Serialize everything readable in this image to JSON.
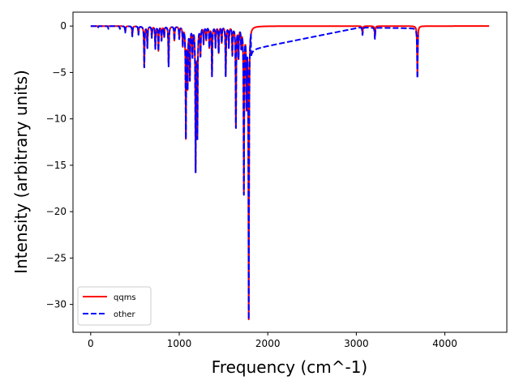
{
  "chart_data": {
    "type": "line",
    "title": "",
    "xlabel": "Frequency (cm^-1)",
    "ylabel": "Intensity (arbitrary units)",
    "xlim": [
      -200,
      4700
    ],
    "ylim": [
      -33,
      1.5
    ],
    "xticks": [
      0,
      1000,
      2000,
      3000,
      4000
    ],
    "yticks": [
      0,
      -5,
      -10,
      -15,
      -20,
      -25,
      -30
    ],
    "legend_position": "lower-left",
    "series": [
      {
        "name": "qqms",
        "color": "#ff0000",
        "style": "solid",
        "x_range": [
          0,
          4500
        ],
        "peaks": [
          {
            "x": 390,
            "y": -0.6
          },
          {
            "x": 470,
            "y": -1.0
          },
          {
            "x": 540,
            "y": -0.9
          },
          {
            "x": 605,
            "y": -4.4
          },
          {
            "x": 640,
            "y": -2.3
          },
          {
            "x": 690,
            "y": -1.2
          },
          {
            "x": 730,
            "y": -2.4
          },
          {
            "x": 765,
            "y": -2.6
          },
          {
            "x": 800,
            "y": -1.5
          },
          {
            "x": 830,
            "y": -1.1
          },
          {
            "x": 880,
            "y": -4.3
          },
          {
            "x": 945,
            "y": -1.5
          },
          {
            "x": 1000,
            "y": -1.3
          },
          {
            "x": 1040,
            "y": -2.0
          },
          {
            "x": 1075,
            "y": -11.8
          },
          {
            "x": 1095,
            "y": -6.2
          },
          {
            "x": 1120,
            "y": -5.5
          },
          {
            "x": 1150,
            "y": -3.0
          },
          {
            "x": 1185,
            "y": -15.2
          },
          {
            "x": 1205,
            "y": -11.5
          },
          {
            "x": 1240,
            "y": -3.0
          },
          {
            "x": 1275,
            "y": -1.8
          },
          {
            "x": 1305,
            "y": -1.4
          },
          {
            "x": 1340,
            "y": -2.2
          },
          {
            "x": 1370,
            "y": -5.3
          },
          {
            "x": 1410,
            "y": -2.2
          },
          {
            "x": 1445,
            "y": -2.8
          },
          {
            "x": 1480,
            "y": -1.7
          },
          {
            "x": 1525,
            "y": -5.3
          },
          {
            "x": 1560,
            "y": -2.2
          },
          {
            "x": 1600,
            "y": -3.0
          },
          {
            "x": 1640,
            "y": -10.8
          },
          {
            "x": 1670,
            "y": -3.2
          },
          {
            "x": 1700,
            "y": -2.0
          },
          {
            "x": 1730,
            "y": -17.8
          },
          {
            "x": 1760,
            "y": -8.0
          },
          {
            "x": 1785,
            "y": -31.3
          },
          {
            "x": 3070,
            "y": -0.8
          },
          {
            "x": 3210,
            "y": -1.2
          },
          {
            "x": 3690,
            "y": -5.4
          }
        ]
      },
      {
        "name": "other",
        "color": "#0000ff",
        "style": "dashed",
        "x_range": [
          0,
          3700
        ],
        "segments": [
          {
            "from": 0,
            "to": 1810,
            "base": [
              0,
              0
            ]
          },
          {
            "from": 1810,
            "to": 3040,
            "base": [
              -2.5,
              -0.15
            ]
          },
          {
            "from": 3040,
            "to": 3700,
            "base": [
              -0.15,
              -0.25
            ]
          }
        ],
        "peaks": [
          {
            "x": 80,
            "y": -0.2
          },
          {
            "x": 200,
            "y": -0.3
          },
          {
            "x": 330,
            "y": -0.3
          },
          {
            "x": 390,
            "y": -0.7
          },
          {
            "x": 470,
            "y": -1.1
          },
          {
            "x": 540,
            "y": -0.9
          },
          {
            "x": 605,
            "y": -4.4
          },
          {
            "x": 640,
            "y": -2.3
          },
          {
            "x": 690,
            "y": -1.2
          },
          {
            "x": 730,
            "y": -2.4
          },
          {
            "x": 765,
            "y": -2.6
          },
          {
            "x": 800,
            "y": -1.5
          },
          {
            "x": 830,
            "y": -1.1
          },
          {
            "x": 880,
            "y": -4.3
          },
          {
            "x": 945,
            "y": -1.5
          },
          {
            "x": 1000,
            "y": -1.3
          },
          {
            "x": 1040,
            "y": -2.0
          },
          {
            "x": 1075,
            "y": -11.8
          },
          {
            "x": 1095,
            "y": -6.2
          },
          {
            "x": 1120,
            "y": -5.5
          },
          {
            "x": 1150,
            "y": -3.0
          },
          {
            "x": 1185,
            "y": -15.2
          },
          {
            "x": 1205,
            "y": -11.5
          },
          {
            "x": 1240,
            "y": -3.0
          },
          {
            "x": 1275,
            "y": -1.8
          },
          {
            "x": 1305,
            "y": -1.4
          },
          {
            "x": 1340,
            "y": -2.2
          },
          {
            "x": 1370,
            "y": -5.3
          },
          {
            "x": 1410,
            "y": -2.2
          },
          {
            "x": 1445,
            "y": -2.8
          },
          {
            "x": 1480,
            "y": -1.7
          },
          {
            "x": 1525,
            "y": -5.3
          },
          {
            "x": 1560,
            "y": -2.2
          },
          {
            "x": 1600,
            "y": -3.0
          },
          {
            "x": 1640,
            "y": -10.8
          },
          {
            "x": 1670,
            "y": -3.2
          },
          {
            "x": 1700,
            "y": -2.0
          },
          {
            "x": 1730,
            "y": -17.8
          },
          {
            "x": 1760,
            "y": -8.0
          },
          {
            "x": 1785,
            "y": -31.3
          },
          {
            "x": 3070,
            "y": -0.8
          },
          {
            "x": 3210,
            "y": -1.2
          },
          {
            "x": 3690,
            "y": -5.4
          }
        ]
      }
    ]
  }
}
